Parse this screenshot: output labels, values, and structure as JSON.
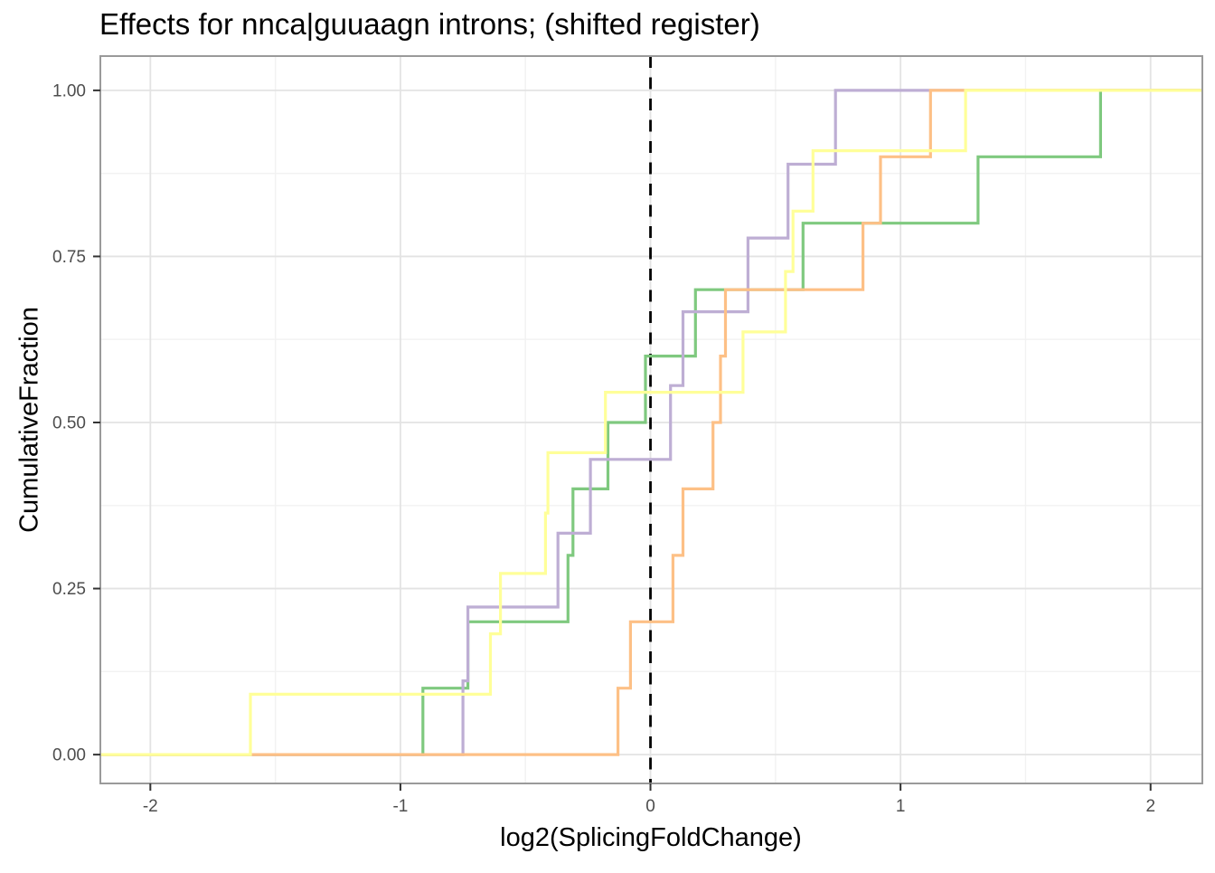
{
  "chart_data": {
    "type": "line",
    "subtype": "step-ecdf",
    "title": "Effects for nnca|guuaagn introns; (shifted register)",
    "xlabel": "log2(SplicingFoldChange)",
    "ylabel": "CumulativeFraction",
    "xlim": [
      -2.2,
      2.207
    ],
    "ylim": [
      -0.0434,
      1.0516
    ],
    "x_ticks": [
      -2,
      -1,
      0,
      1,
      2
    ],
    "x_tick_labels": [
      "-2",
      "-1",
      "0",
      "1",
      "2"
    ],
    "y_ticks": [
      0,
      0.25,
      0.5,
      0.75,
      1
    ],
    "y_tick_labels": [
      "0.00",
      "0.25",
      "0.50",
      "0.75",
      "1.00"
    ],
    "x_minor_ticks": [
      -1.5,
      -0.5,
      0.5,
      1.5
    ],
    "y_minor_ticks": [
      0.125,
      0.375,
      0.625,
      0.875
    ],
    "grid": true,
    "legend_position": "none",
    "reference_line": {
      "x": 0,
      "style": "dashed",
      "color": "#000000"
    },
    "series": [
      {
        "name": "green",
        "color": "#7FC97F",
        "n": 10,
        "step_x": [
          -0.91,
          -0.73,
          -0.33,
          -0.31,
          -0.17,
          -0.02,
          0.18,
          0.61,
          1.31,
          1.8
        ]
      },
      {
        "name": "purple",
        "color": "#BEAED4",
        "n": 9,
        "step_x": [
          -0.75,
          -0.73,
          -0.37,
          -0.24,
          0.08,
          0.13,
          0.39,
          0.55,
          0.74
        ]
      },
      {
        "name": "orange",
        "color": "#FDC086",
        "n": 10,
        "step_x": [
          -0.13,
          -0.08,
          0.09,
          0.13,
          0.25,
          0.28,
          0.3,
          0.85,
          0.92,
          1.12
        ]
      },
      {
        "name": "yellow",
        "color": "#FFFF99",
        "n": 11,
        "step_x": [
          -1.6,
          -0.64,
          -0.6,
          -0.42,
          -0.41,
          -0.18,
          0.37,
          0.54,
          0.57,
          0.65,
          1.26
        ]
      }
    ],
    "style": {
      "background": "#FFFFFF",
      "grid_major_color": "#E3E3E3",
      "grid_minor_color": "#F2F2F2",
      "panel_border_color": "#9A9A9A",
      "tick_color": "#333333",
      "tick_label_color": "#4D4D4D",
      "text_color": "#000000"
    }
  }
}
